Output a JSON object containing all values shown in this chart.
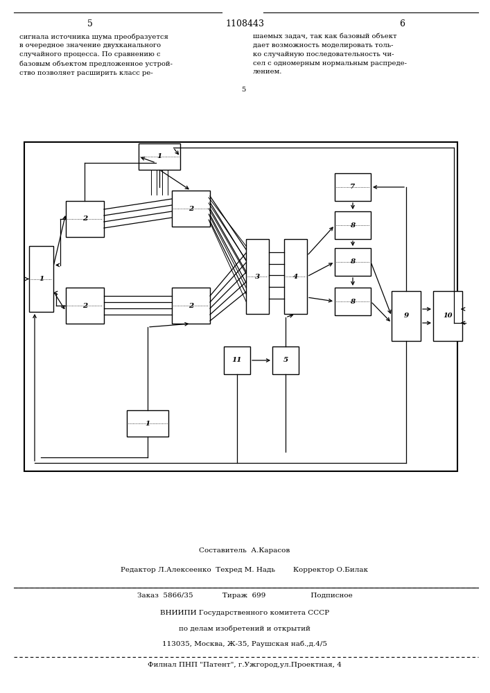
{
  "page_number_left": "5",
  "page_number_center": "1108443",
  "page_number_right": "6",
  "text_left": "сигнала источника шума преобразуется\nв очередное значение двухканального\nслучайного процесса. По сравнению с \nбазовым объектом предложенное устрой-\nство позволяет расширить класс ре-",
  "text_right": "шаемых задач, так как базовый объект\nдает возможность моделировать толь-\nко случайную последовательность чи-\nсел с одномерным нормальным распреде-\nлением.",
  "line_number_5": "5",
  "footer_line1": "Составитель  А.Карасов",
  "footer_line2": "Редактор Л.Алексеенко  Техред М. Надь        Корректор О.Билак",
  "footer_line3": "Заказ  5866/35             Тираж  699                    Подписное",
  "footer_line4": "ВНИИПИ Государственного комитета СССР",
  "footer_line5": "по делам изобретений и открытий",
  "footer_line6": "113035, Москва, Ж-35, Раушская наб.,д.4/5",
  "footer_line7": "Филнал ПНП \"Патент\", г.Ужгород,ул.Проектная, 4",
  "bg_color": "#ffffff",
  "text_color": "#000000"
}
